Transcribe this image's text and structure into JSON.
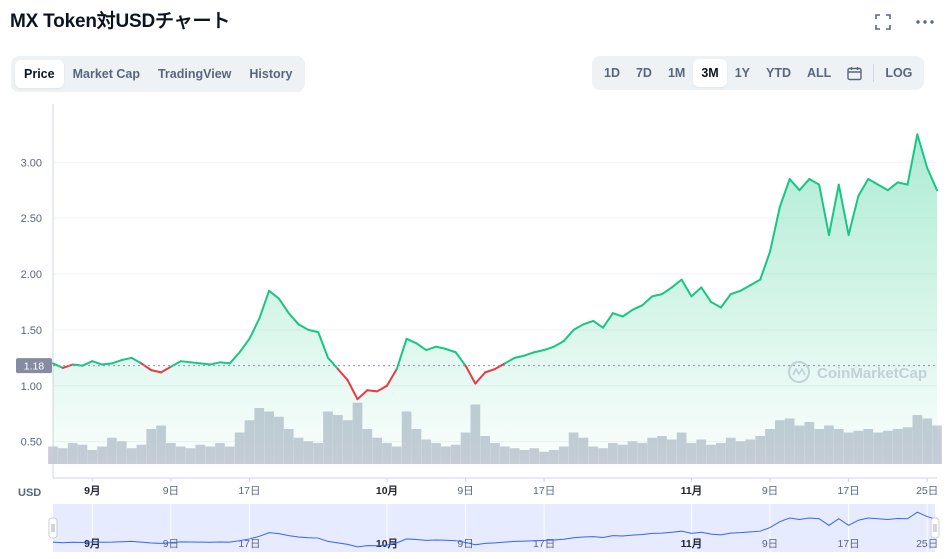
{
  "header": {
    "title": "MX Token対USDチャート",
    "expand_icon": "fullscreen-icon",
    "more_icon": "more-horizontal-icon"
  },
  "chart_tabs": [
    {
      "label": "Price",
      "active": true
    },
    {
      "label": "Market Cap",
      "active": false
    },
    {
      "label": "TradingView",
      "active": false
    },
    {
      "label": "History",
      "active": false
    }
  ],
  "range_tabs": [
    {
      "label": "1D",
      "active": false
    },
    {
      "label": "7D",
      "active": false
    },
    {
      "label": "1M",
      "active": false
    },
    {
      "label": "3M",
      "active": true
    },
    {
      "label": "1Y",
      "active": false
    },
    {
      "label": "YTD",
      "active": false
    },
    {
      "label": "ALL",
      "active": false
    }
  ],
  "calendar_icon": "calendar-icon",
  "log_label": "LOG",
  "watermark": "CoinMarketCap",
  "colors": {
    "up": "#16c784",
    "down": "#ea3943",
    "volume": "#c8ccd8",
    "navigator_line": "#3861fb",
    "navigator_fill": "#e6ebff",
    "reference_badge": "#858ca2"
  },
  "chart_data": {
    "type": "line",
    "series_name": "Price",
    "currency_label": "USD",
    "reference_price": 1.18,
    "reference_label": "1.18",
    "ylim": [
      0.3,
      3.45
    ],
    "yticks": [
      {
        "value": 0.5,
        "label": "0.50"
      },
      {
        "value": 1.0,
        "label": "1.00"
      },
      {
        "value": 1.5,
        "label": "1.50"
      },
      {
        "value": 2.0,
        "label": "2.00"
      },
      {
        "value": 2.5,
        "label": "2.50"
      },
      {
        "value": 3.0,
        "label": "3.00"
      }
    ],
    "xlim": [
      0,
      90
    ],
    "xticks": [
      {
        "x": 4,
        "label": "9月",
        "bold": true
      },
      {
        "x": 12,
        "label": "9日",
        "bold": false
      },
      {
        "x": 20,
        "label": "17日",
        "bold": false
      },
      {
        "x": 34,
        "label": "10月",
        "bold": true
      },
      {
        "x": 42,
        "label": "9日",
        "bold": false
      },
      {
        "x": 50,
        "label": "17日",
        "bold": false
      },
      {
        "x": 65,
        "label": "11月",
        "bold": true
      },
      {
        "x": 73,
        "label": "9日",
        "bold": false
      },
      {
        "x": 81,
        "label": "17日",
        "bold": false
      },
      {
        "x": 89,
        "label": "25日",
        "bold": false
      }
    ],
    "x": [
      0,
      1,
      2,
      3,
      4,
      5,
      6,
      7,
      8,
      9,
      10,
      11,
      12,
      13,
      14,
      15,
      16,
      17,
      18,
      19,
      20,
      21,
      22,
      23,
      24,
      25,
      26,
      27,
      28,
      29,
      30,
      31,
      32,
      33,
      34,
      35,
      36,
      37,
      38,
      39,
      40,
      41,
      42,
      43,
      44,
      45,
      46,
      47,
      48,
      49,
      50,
      51,
      52,
      53,
      54,
      55,
      56,
      57,
      58,
      59,
      60,
      61,
      62,
      63,
      64,
      65,
      66,
      67,
      68,
      69,
      70,
      71,
      72,
      73,
      74,
      75,
      76,
      77,
      78,
      79,
      80,
      81,
      82,
      83,
      84,
      85,
      86,
      87,
      88,
      89,
      90
    ],
    "price": [
      1.2,
      1.16,
      1.19,
      1.18,
      1.22,
      1.19,
      1.2,
      1.23,
      1.25,
      1.2,
      1.14,
      1.12,
      1.17,
      1.22,
      1.21,
      1.2,
      1.19,
      1.21,
      1.2,
      1.3,
      1.42,
      1.6,
      1.85,
      1.78,
      1.65,
      1.55,
      1.5,
      1.48,
      1.25,
      1.15,
      1.05,
      0.88,
      0.96,
      0.95,
      1.0,
      1.15,
      1.42,
      1.38,
      1.32,
      1.35,
      1.33,
      1.3,
      1.18,
      1.02,
      1.12,
      1.15,
      1.2,
      1.25,
      1.27,
      1.3,
      1.32,
      1.35,
      1.4,
      1.5,
      1.55,
      1.58,
      1.52,
      1.65,
      1.62,
      1.68,
      1.72,
      1.8,
      1.82,
      1.88,
      1.95,
      1.8,
      1.88,
      1.75,
      1.7,
      1.82,
      1.85,
      1.9,
      1.95,
      2.2,
      2.6,
      2.85,
      2.75,
      2.85,
      2.8,
      2.35,
      2.8,
      2.35,
      2.7,
      2.85,
      2.8,
      2.75,
      2.82,
      2.8,
      3.25,
      2.95,
      2.75
    ],
    "volume": [
      0.1,
      0.09,
      0.12,
      0.11,
      0.08,
      0.1,
      0.15,
      0.13,
      0.09,
      0.11,
      0.2,
      0.22,
      0.12,
      0.1,
      0.09,
      0.11,
      0.1,
      0.12,
      0.1,
      0.18,
      0.25,
      0.32,
      0.3,
      0.27,
      0.2,
      0.15,
      0.13,
      0.12,
      0.3,
      0.28,
      0.25,
      0.35,
      0.2,
      0.15,
      0.12,
      0.1,
      0.3,
      0.2,
      0.14,
      0.12,
      0.1,
      0.11,
      0.18,
      0.34,
      0.16,
      0.12,
      0.1,
      0.09,
      0.08,
      0.09,
      0.07,
      0.08,
      0.1,
      0.18,
      0.15,
      0.1,
      0.09,
      0.12,
      0.11,
      0.13,
      0.12,
      0.15,
      0.16,
      0.14,
      0.18,
      0.12,
      0.14,
      0.11,
      0.12,
      0.15,
      0.13,
      0.14,
      0.16,
      0.2,
      0.25,
      0.26,
      0.22,
      0.24,
      0.2,
      0.22,
      0.2,
      0.18,
      0.19,
      0.2,
      0.18,
      0.19,
      0.2,
      0.21,
      0.28,
      0.26,
      0.22
    ]
  }
}
